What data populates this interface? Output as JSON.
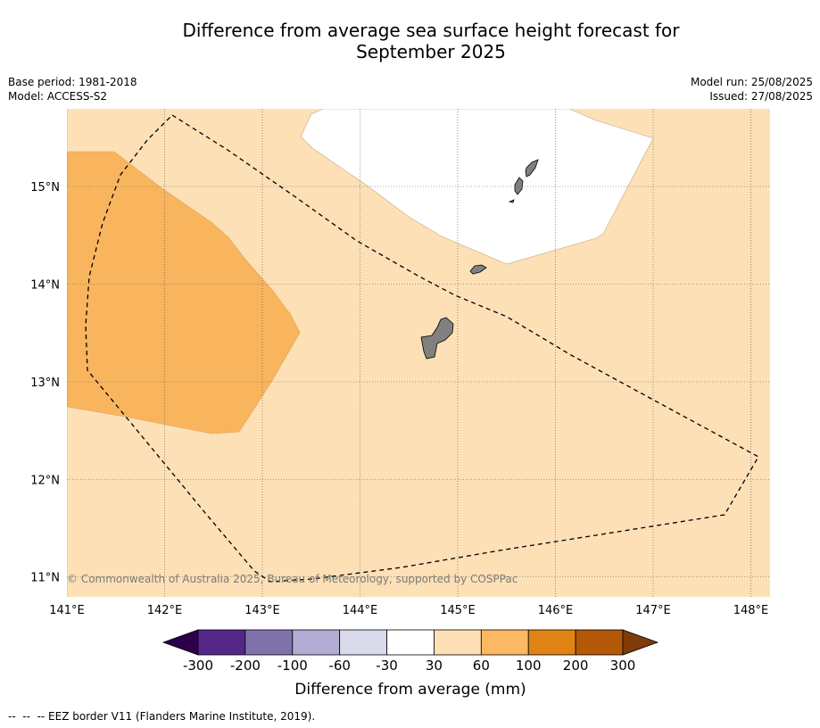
{
  "title_line1": "Difference from average sea surface height forecast for",
  "title_line2": "September 2025",
  "meta": {
    "base_period": "Base period: 1981-2018",
    "model": "Model: ACCESS-S2",
    "model_run": "Model run: 25/08/2025",
    "issued": "Issued: 27/08/2025"
  },
  "map": {
    "lon_ticks": [
      "141°E",
      "142°E",
      "143°E",
      "144°E",
      "145°E",
      "146°E",
      "147°E",
      "148°E"
    ],
    "lat_ticks": [
      "15°N",
      "14°N",
      "13°N",
      "12°N",
      "11°N"
    ],
    "copyright": "© Commonwealth of Australia 2025, Bureau of Meteorology, supported by COSPPac",
    "colors": {
      "band_30_60": "#fde0b6",
      "band_60_100": "#f9b55e",
      "band_minus30_30": "#ffffff",
      "land": "#808080",
      "eez_border": "#000000"
    }
  },
  "colorbar": {
    "label": "Difference from average (mm)",
    "ticks": [
      "-300",
      "-200",
      "-100",
      "-60",
      "-30",
      "30",
      "60",
      "100",
      "200",
      "300"
    ],
    "colors": [
      "#2d004b",
      "#542788",
      "#8073ac",
      "#b2abd2",
      "#d8daeb",
      "#ffffff",
      "#fee0b6",
      "#fdb863",
      "#e08214",
      "#b35806",
      "#7f3b08"
    ]
  },
  "footnote": "--  --  -- EEZ border V11 (Flanders Marine Institute, 2019)."
}
